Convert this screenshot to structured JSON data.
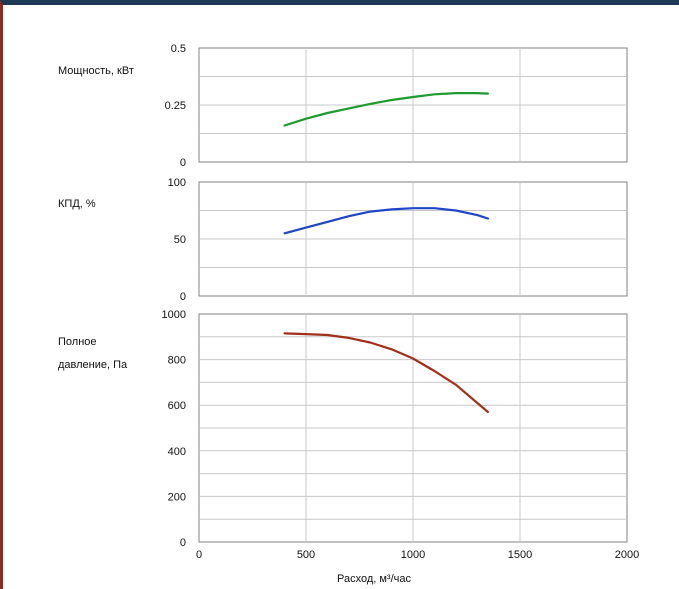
{
  "chart_data": [
    {
      "type": "line",
      "ylabel": "Мощность, кВт",
      "yticks": [
        "0",
        "0.25",
        "0.5"
      ],
      "ylim": [
        0,
        0.5
      ],
      "xlim": [
        0,
        2000
      ],
      "grid": true,
      "series": [
        {
          "color": "#1e9a2f",
          "x": [
            400,
            500,
            600,
            700,
            800,
            900,
            1000,
            1100,
            1200,
            1300,
            1350
          ],
          "y": [
            0.16,
            0.19,
            0.215,
            0.235,
            0.255,
            0.272,
            0.285,
            0.297,
            0.302,
            0.302,
            0.3
          ]
        }
      ]
    },
    {
      "type": "line",
      "ylabel": "КПД, %",
      "yticks": [
        "0",
        "50",
        "100"
      ],
      "ylim": [
        0,
        100
      ],
      "xlim": [
        0,
        2000
      ],
      "grid": true,
      "series": [
        {
          "color": "#1f46c8",
          "x": [
            400,
            500,
            600,
            700,
            800,
            900,
            1000,
            1100,
            1200,
            1300,
            1350
          ],
          "y": [
            55,
            60,
            65,
            70,
            74,
            76,
            77,
            77,
            75,
            71,
            68
          ]
        }
      ]
    },
    {
      "type": "line",
      "ylabel": "Полное давление, Па",
      "yticks": [
        "0",
        "200",
        "400",
        "600",
        "800",
        "1000"
      ],
      "ylim": [
        0,
        1000
      ],
      "xlim": [
        0,
        2000
      ],
      "xticks": [
        "0",
        "500",
        "1000",
        "1500",
        "2000"
      ],
      "xlabel": "Расход, м³/час",
      "grid": true,
      "series": [
        {
          "color": "#a0301c",
          "x": [
            400,
            500,
            600,
            700,
            800,
            900,
            1000,
            1100,
            1200,
            1300,
            1350
          ],
          "y": [
            915,
            912,
            908,
            895,
            875,
            845,
            805,
            750,
            690,
            610,
            570
          ]
        }
      ]
    }
  ]
}
